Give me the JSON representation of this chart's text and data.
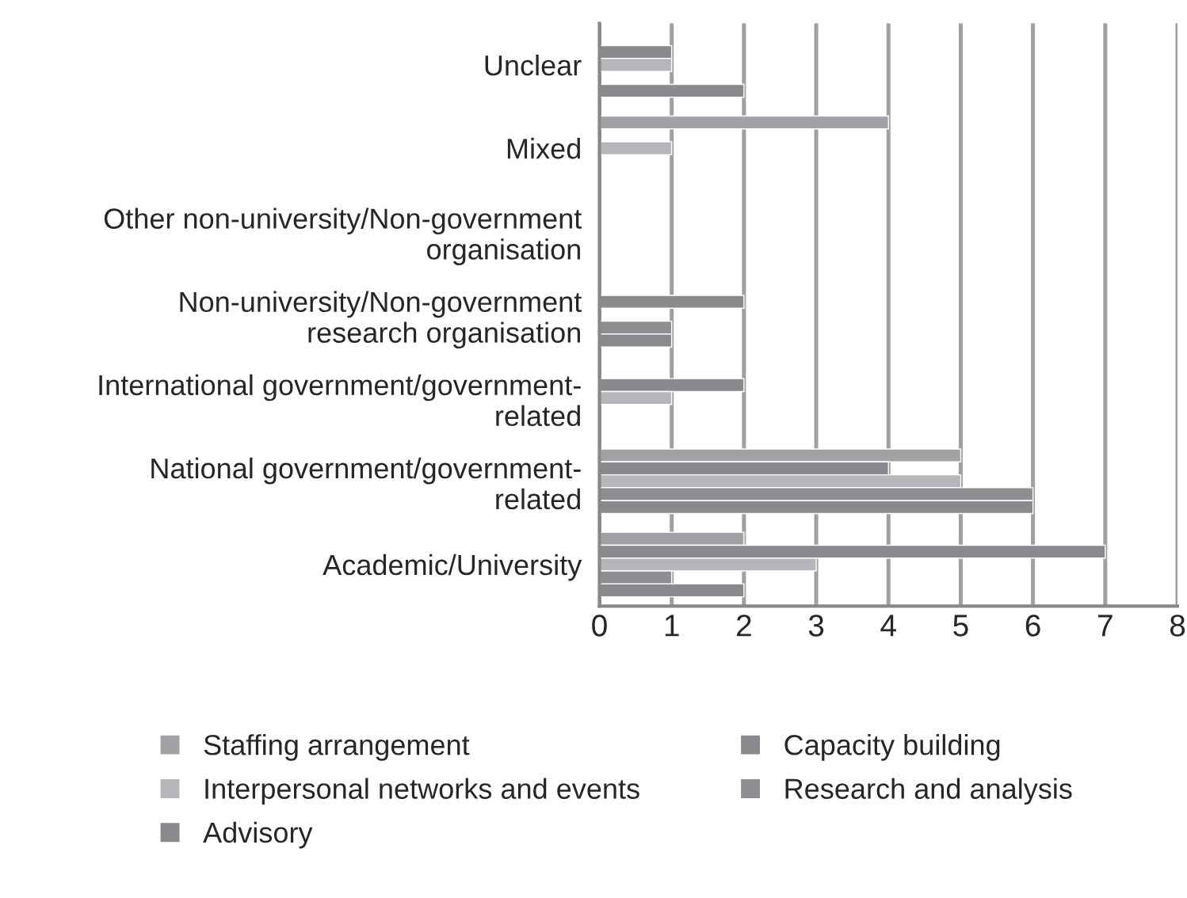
{
  "chart_data": {
    "type": "bar",
    "orientation": "horizontal",
    "categories": [
      "Unclear",
      "Mixed",
      "Other non-university/Non-government\norganisation",
      "Non-university/Non-government\nresearch organisation",
      "International government/government-\nrelated",
      "National government/government-\nrelated",
      "Academic/University"
    ],
    "series": [
      {
        "name": "Staffing arrangement",
        "color": "#a2a2a6",
        "values": [
          null,
          4,
          null,
          null,
          null,
          5,
          2
        ]
      },
      {
        "name": "Capacity building",
        "color": "#8a8a8e",
        "values": [
          1,
          null,
          null,
          2,
          2,
          4,
          7
        ]
      },
      {
        "name": "Interpersonal networks and events",
        "color": "#b6b6ba",
        "values": [
          1,
          1,
          null,
          null,
          1,
          5,
          3
        ]
      },
      {
        "name": "Research and analysis",
        "color": "#8e8e92",
        "values": [
          null,
          null,
          null,
          1,
          null,
          6,
          1
        ]
      },
      {
        "name": "Advisory",
        "color": "#8a8a8e",
        "values": [
          2,
          null,
          null,
          1,
          null,
          6,
          2
        ]
      }
    ],
    "xlim": [
      0,
      8
    ],
    "xticks": [
      0,
      1,
      2,
      3,
      4,
      5,
      6,
      7,
      8
    ],
    "grid": "x",
    "legend": "bottom"
  }
}
